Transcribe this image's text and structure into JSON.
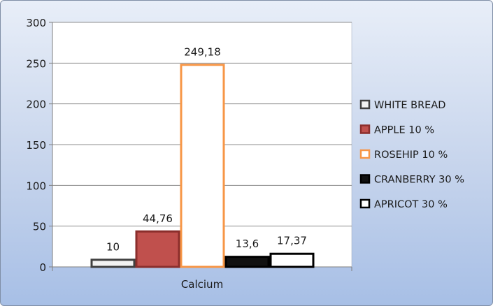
{
  "chart_data": {
    "type": "bar",
    "categories": [
      "Calcium"
    ],
    "series": [
      {
        "name": "WHITE BREAD",
        "values": [
          10
        ],
        "label": "10",
        "color": "#f2f2f2",
        "edge": "#404040"
      },
      {
        "name": "APPLE 10 %",
        "values": [
          44.76
        ],
        "label": "44,76",
        "color": "#c0504d",
        "edge": "#8b2e2c"
      },
      {
        "name": "ROSEHIP 10 %",
        "values": [
          249.18
        ],
        "label": "249,18",
        "color": "#ffffff",
        "edge": "#f79646"
      },
      {
        "name": "CRANBERRY 30 %",
        "values": [
          13.6
        ],
        "label": "13,6",
        "color": "#111111",
        "edge": "#000000"
      },
      {
        "name": "APRICOT 30 %",
        "values": [
          17.37
        ],
        "label": "17,37",
        "color": "#ffffff",
        "edge": "#000000"
      }
    ],
    "yticks": [
      "0",
      "50",
      "100",
      "150",
      "200",
      "250",
      "300"
    ],
    "ylim": [
      0,
      300
    ],
    "grid": true,
    "legend": "right",
    "title": "",
    "xlabel": "",
    "ylabel": ""
  }
}
